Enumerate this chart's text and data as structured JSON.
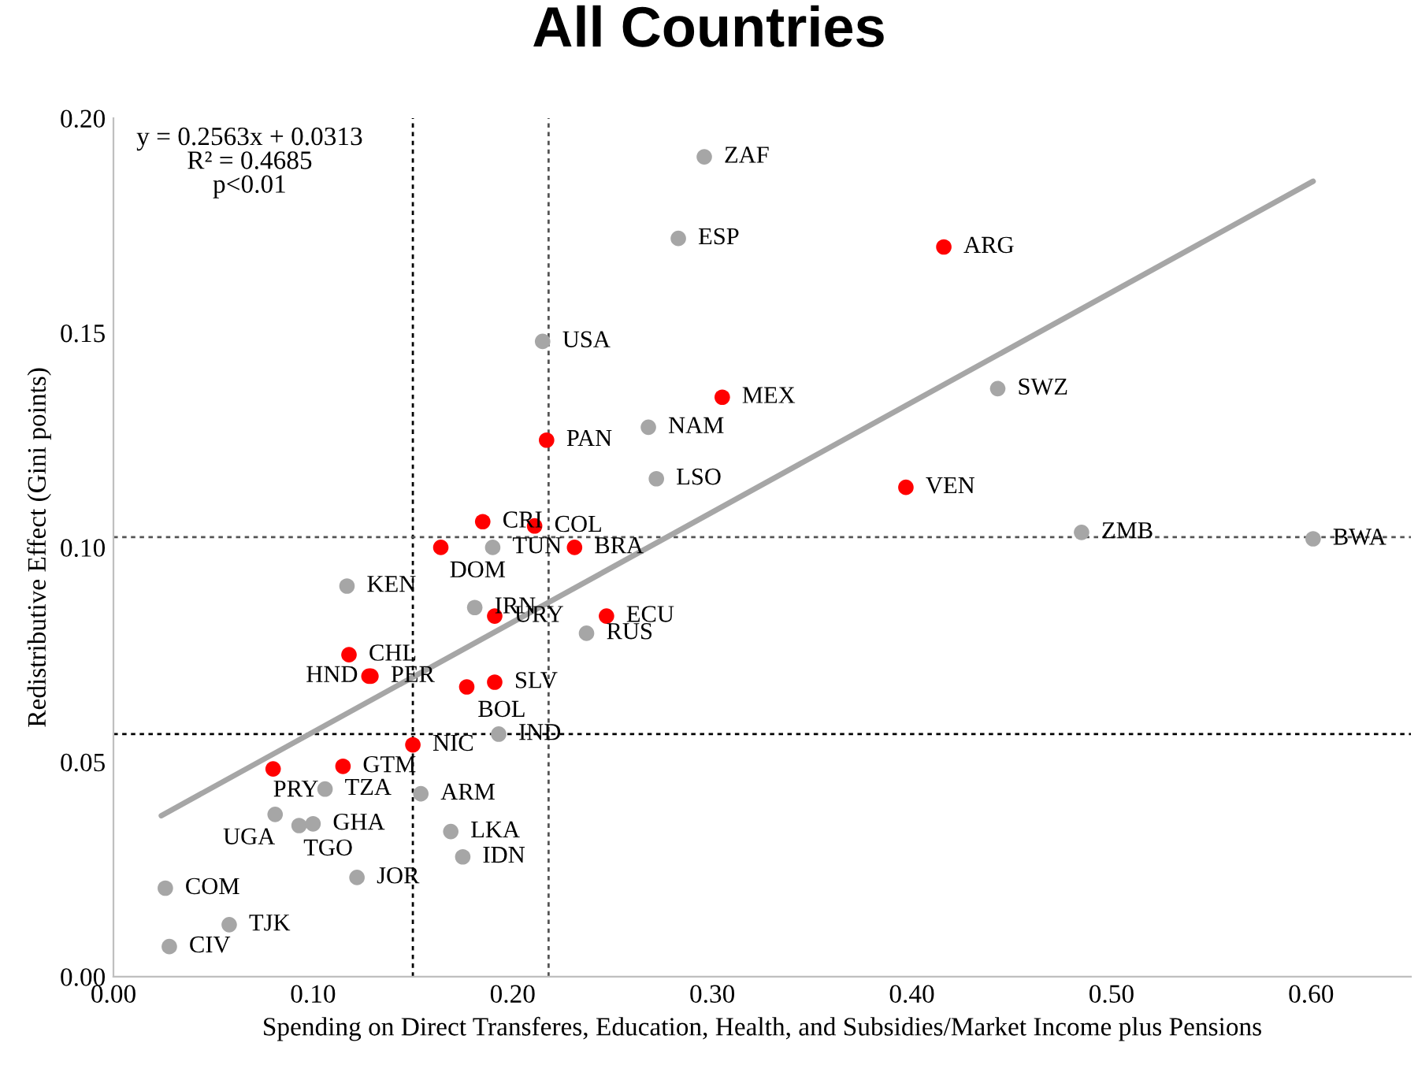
{
  "chart_data": {
    "type": "scatter",
    "title": "All Countries",
    "xlabel": "Spending on Direct Transferes, Education, Health, and Subsidies/Market Income plus Pensions",
    "ylabel": "Redistributive Effect (Gini points)",
    "annotations": [
      "y = 0.2563x + 0.0313\nR² = 0.4685\np<0.01"
    ],
    "marker": "circle",
    "grid": false,
    "legend": false,
    "xlim": [
      0,
      0.65
    ],
    "ylim": [
      0,
      0.2
    ],
    "xticks": [
      {
        "value": 0,
        "label": "0.00"
      },
      {
        "value": 0.1,
        "label": "0.10"
      },
      {
        "value": 0.2,
        "label": "0.20"
      },
      {
        "value": 0.3,
        "label": "0.30"
      },
      {
        "value": 0.4,
        "label": "0.40"
      },
      {
        "value": 0.5,
        "label": "0.50"
      },
      {
        "value": 0.6,
        "label": "0.60"
      }
    ],
    "yticks": [
      {
        "value": 0,
        "label": "0.00"
      },
      {
        "value": 0.05,
        "label": "0.05"
      },
      {
        "value": 0.1,
        "label": "0.10"
      },
      {
        "value": 0.15,
        "label": "0.15"
      },
      {
        "value": 0.2,
        "label": "0.20"
      }
    ],
    "ref_lines": [
      {
        "axis": "x",
        "value": 0.15,
        "color": "#000000",
        "line_style": "dotted"
      },
      {
        "axis": "x",
        "value": 0.218,
        "color": "#555555",
        "line_style": "dotted"
      },
      {
        "axis": "y",
        "value": 0.1024,
        "color": "#555555",
        "line_style": "dotted"
      },
      {
        "axis": "y",
        "value": 0.0565,
        "color": "#000000",
        "line_style": "dotted"
      }
    ],
    "series": [
      {
        "type": "line",
        "marker": "none",
        "color": "#a6a6a6",
        "x": [
          0.024,
          0.601
        ],
        "values": [
          0.0375,
          0.1853
        ]
      },
      {
        "color": "#a6a6a6",
        "x": [
          0.296,
          0.283,
          0.215,
          0.443,
          0.268,
          0.272,
          0.485,
          0.601,
          0.19,
          0.117,
          0.181,
          0.237,
          0.193,
          0.106,
          0.154,
          0.081,
          0.093,
          0.1,
          0.169,
          0.175,
          0.122,
          0.026,
          0.058,
          0.028
        ],
        "values": [
          0.191,
          0.172,
          0.148,
          0.137,
          0.128,
          0.116,
          0.1035,
          0.102,
          0.1,
          0.091,
          0.086,
          0.08,
          0.0565,
          0.0437,
          0.0426,
          0.0378,
          0.0352,
          0.0356,
          0.0338,
          0.0279,
          0.0231,
          0.0206,
          0.0121,
          0.007
        ],
        "value_labels": [
          "ZAF",
          "ESP",
          "USA",
          "SWZ",
          "NAM",
          "LSO",
          "ZMB",
          "BWA",
          "TUN",
          "KEN",
          "IRN",
          "RUS",
          "IND",
          "TZA",
          "ARM",
          "UGA",
          "TGO",
          "GHA",
          "LKA",
          "IDN",
          "JOR",
          "COM",
          "TJK",
          "CIV"
        ]
      },
      {
        "color": "#ff0000",
        "x": [
          0.416,
          0.305,
          0.217,
          0.397,
          0.185,
          0.211,
          0.164,
          0.231,
          0.191,
          0.247,
          0.118,
          0.128,
          0.129,
          0.177,
          0.191,
          0.15,
          0.115,
          0.08
        ],
        "values": [
          0.17,
          0.135,
          0.125,
          0.114,
          0.106,
          0.105,
          0.1,
          0.1,
          0.084,
          0.084,
          0.075,
          0.07,
          0.07,
          0.0675,
          0.0686,
          0.054,
          0.049,
          0.0484
        ],
        "value_labels": [
          "ARG",
          "MEX",
          "PAN",
          "VEN",
          "CRI",
          "COL",
          "DOM",
          "BRA",
          "URY",
          "ECU",
          "CHL",
          "HND",
          "PER",
          "BOL",
          "SLV",
          "NIC",
          "GTM",
          "PRY"
        ]
      }
    ]
  }
}
